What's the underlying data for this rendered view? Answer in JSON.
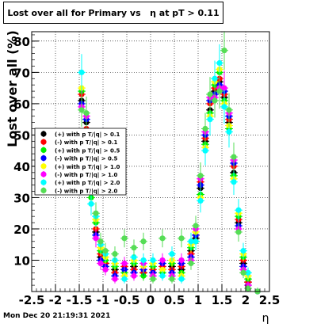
{
  "chart_data": {
    "type": "scatter",
    "title": "Lost over all for Primary vs   η at pT > 0.11",
    "xlabel": "η",
    "ylabel": "Lost  over all (%)",
    "xlim": [
      -2.5,
      2.5
    ],
    "ylim": [
      0,
      83
    ],
    "grid": true,
    "legend_placement": "middle-left",
    "x_ticks": [
      "-2.5",
      "-2",
      "-1.5",
      "-1",
      "-0.5",
      "0",
      "0.5",
      "1",
      "1.5",
      "2",
      "2.5"
    ],
    "y_ticks": [
      "10",
      "20",
      "30",
      "40",
      "50",
      "60",
      "70",
      "80"
    ],
    "series": [
      {
        "name": "(+) with p T/|q| > 0.1",
        "color": "#000000",
        "x": [
          -1.45,
          -1.35,
          -1.25,
          -1.15,
          -1.05,
          -0.95,
          -0.75,
          -0.55,
          -0.35,
          -0.15,
          0.05,
          0.25,
          0.45,
          0.65,
          0.85,
          0.95,
          1.05,
          1.15,
          1.25,
          1.35,
          1.45,
          1.55,
          1.65,
          1.75,
          1.85,
          1.95,
          2.05,
          2.25
        ],
        "y": [
          61,
          54,
          35,
          19,
          11,
          9,
          7,
          7,
          8,
          6,
          6,
          7,
          8,
          7,
          13,
          17,
          33,
          48,
          58,
          64,
          67,
          62,
          54,
          38,
          22,
          9,
          3,
          0
        ]
      },
      {
        "name": "(-) with p T/|q| > 0.1",
        "color": "#ff0000",
        "x": [
          -1.45,
          -1.35,
          -1.25,
          -1.15,
          -1.05,
          -0.95,
          -0.75,
          -0.55,
          -0.35,
          -0.15,
          0.05,
          0.25,
          0.45,
          0.65,
          0.85,
          0.95,
          1.05,
          1.15,
          1.25,
          1.35,
          1.45,
          1.55,
          1.65,
          1.75,
          1.85,
          1.95,
          2.05,
          2.25
        ],
        "y": [
          63,
          52,
          33,
          20,
          12,
          9,
          6,
          8,
          7,
          6,
          7,
          8,
          7,
          8,
          12,
          18,
          35,
          49,
          60,
          65,
          68,
          63,
          55,
          40,
          23,
          10,
          3,
          0
        ]
      },
      {
        "name": "(+) with p T/|q| > 0.5",
        "color": "#00ee00",
        "x": [
          -1.45,
          -1.35,
          -1.25,
          -1.15,
          -1.05,
          -0.95,
          -0.75,
          -0.55,
          -0.35,
          -0.15,
          0.05,
          0.25,
          0.45,
          0.65,
          0.85,
          0.95,
          1.05,
          1.15,
          1.25,
          1.35,
          1.45,
          1.55,
          1.65,
          1.75,
          1.85,
          1.95,
          2.05,
          2.25
        ],
        "y": [
          64,
          50,
          30,
          22,
          13,
          10,
          8,
          6,
          9,
          5,
          8,
          6,
          9,
          6,
          14,
          16,
          31,
          47,
          57,
          66,
          70,
          61,
          52,
          37,
          24,
          11,
          4,
          0
        ]
      },
      {
        "name": "(-) with p T/|q| > 0.5",
        "color": "#0000ff",
        "x": [
          -1.45,
          -1.35,
          -1.25,
          -1.15,
          -1.05,
          -0.95,
          -0.75,
          -0.55,
          -0.35,
          -0.15,
          0.05,
          0.25,
          0.45,
          0.65,
          0.85,
          0.95,
          1.05,
          1.15,
          1.25,
          1.35,
          1.45,
          1.55,
          1.65,
          1.75,
          1.85,
          1.95,
          2.05,
          2.25
        ],
        "y": [
          60,
          55,
          36,
          18,
          10,
          8,
          5,
          7,
          6,
          7,
          6,
          9,
          6,
          9,
          11,
          18,
          34,
          50,
          61,
          63,
          66,
          64,
          56,
          41,
          21,
          8,
          2,
          0
        ]
      },
      {
        "name": "(+) with p T/|q| > 1.0",
        "color": "#ffff00",
        "x": [
          -1.45,
          -1.35,
          -1.25,
          -1.15,
          -1.05,
          -0.95,
          -0.75,
          -0.55,
          -0.35,
          -0.15,
          0.05,
          0.25,
          0.45,
          0.65,
          0.85,
          0.95,
          1.05,
          1.15,
          1.25,
          1.35,
          1.45,
          1.55,
          1.65,
          1.75,
          1.85,
          1.95,
          2.05,
          2.25
        ],
        "y": [
          65,
          51,
          32,
          23,
          14,
          11,
          9,
          5,
          10,
          8,
          9,
          7,
          10,
          5,
          15,
          19,
          30,
          46,
          56,
          67,
          71,
          60,
          53,
          36,
          25,
          12,
          5,
          0
        ]
      },
      {
        "name": "(-) with p T/|q| > 1.0",
        "color": "#ff00ff",
        "x": [
          -1.45,
          -1.35,
          -1.25,
          -1.15,
          -1.05,
          -0.95,
          -0.75,
          -0.55,
          -0.35,
          -0.15,
          0.05,
          0.25,
          0.45,
          0.65,
          0.85,
          0.95,
          1.05,
          1.15,
          1.25,
          1.35,
          1.45,
          1.55,
          1.65,
          1.75,
          1.85,
          1.95,
          2.05,
          2.25
        ],
        "y": [
          59,
          56,
          37,
          17,
          9,
          7,
          4,
          9,
          5,
          9,
          5,
          10,
          5,
          10,
          10,
          20,
          36,
          51,
          62,
          62,
          65,
          65,
          57,
          42,
          20,
          7,
          2,
          0
        ]
      },
      {
        "name": "(+) with p T/|q| > 2.0",
        "color": "#00ffff",
        "x": [
          -1.45,
          -1.35,
          -1.25,
          -1.15,
          -1.05,
          -0.95,
          -0.75,
          -0.55,
          -0.35,
          -0.15,
          0.05,
          0.25,
          0.45,
          0.65,
          0.85,
          0.95,
          1.05,
          1.15,
          1.25,
          1.35,
          1.45,
          1.55,
          1.65,
          1.75,
          1.85,
          1.95,
          2.05,
          2.25
        ],
        "y": [
          70,
          48,
          28,
          24,
          15,
          12,
          10,
          4,
          11,
          10,
          10,
          5,
          12,
          4,
          16,
          16,
          29,
          45,
          55,
          68,
          73,
          59,
          51,
          35,
          26,
          13,
          6,
          0
        ]
      },
      {
        "name": "(-) with p T/|q| > 2.0",
        "color": "#55dd55",
        "x": [
          -1.45,
          -1.35,
          -1.25,
          -1.15,
          -1.05,
          -0.95,
          -0.75,
          -0.55,
          -0.35,
          -0.15,
          0.05,
          0.25,
          0.45,
          0.65,
          0.85,
          0.95,
          1.05,
          1.15,
          1.25,
          1.35,
          1.45,
          1.55,
          1.65,
          1.75,
          1.85,
          1.95,
          2.05,
          2.25
        ],
        "y": [
          58,
          57,
          38,
          25,
          16,
          13,
          12,
          17,
          14,
          16,
          4,
          17,
          4,
          17,
          9,
          21,
          37,
          52,
          63,
          61,
          64,
          77,
          58,
          43,
          19,
          6,
          1,
          0
        ]
      }
    ]
  },
  "footer_timestamp": "Mon Dec 20 21:19:31 2021"
}
